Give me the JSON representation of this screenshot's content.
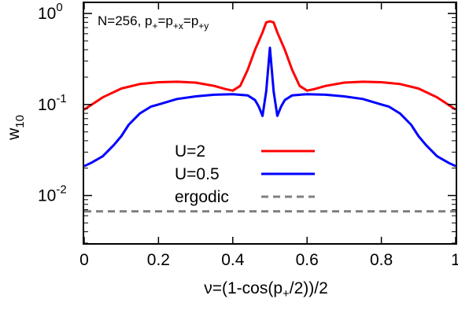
{
  "chart_data": {
    "type": "line",
    "annotation": "N=256, p+=p+x=p+y",
    "xlabel": "ν=(1-cos(p+/2))/2",
    "ylabel": "w10",
    "xlim": [
      0,
      1
    ],
    "ylim": [
      0.003,
      1.3
    ],
    "yscale": "log",
    "grid": false,
    "legend_position": "center",
    "x_ticks": [
      {
        "value": 0,
        "label": "0"
      },
      {
        "value": 0.2,
        "label": "0.2"
      },
      {
        "value": 0.4,
        "label": "0.4"
      },
      {
        "value": 0.6,
        "label": "0.6"
      },
      {
        "value": 0.8,
        "label": "0.8"
      },
      {
        "value": 1,
        "label": "1"
      }
    ],
    "y_ticks": [
      {
        "value": 0.01,
        "base": "10",
        "exp": "-2"
      },
      {
        "value": 0.1,
        "base": "10",
        "exp": "-1"
      },
      {
        "value": 1,
        "base": "10",
        "exp": "0"
      }
    ],
    "series": [
      {
        "name": "U=2",
        "color": "#ff0000",
        "style": "solid",
        "x": [
          0,
          0.05,
          0.1,
          0.15,
          0.2,
          0.25,
          0.3,
          0.35,
          0.38,
          0.4,
          0.42,
          0.44,
          0.46,
          0.48,
          0.49,
          0.5,
          0.51,
          0.52,
          0.54,
          0.56,
          0.58,
          0.6,
          0.62,
          0.65,
          0.7,
          0.75,
          0.8,
          0.85,
          0.9,
          0.95,
          1
        ],
        "y": [
          0.088,
          0.12,
          0.15,
          0.168,
          0.176,
          0.178,
          0.174,
          0.16,
          0.148,
          0.142,
          0.16,
          0.24,
          0.4,
          0.62,
          0.8,
          0.82,
          0.8,
          0.62,
          0.4,
          0.24,
          0.16,
          0.142,
          0.148,
          0.16,
          0.174,
          0.178,
          0.176,
          0.168,
          0.15,
          0.12,
          0.088
        ]
      },
      {
        "name": "U=0.5",
        "color": "#0000ff",
        "style": "solid",
        "x": [
          0,
          0.02,
          0.05,
          0.08,
          0.1,
          0.12,
          0.15,
          0.18,
          0.2,
          0.25,
          0.3,
          0.35,
          0.4,
          0.44,
          0.46,
          0.47,
          0.48,
          0.49,
          0.5,
          0.51,
          0.52,
          0.53,
          0.54,
          0.56,
          0.6,
          0.65,
          0.7,
          0.75,
          0.8,
          0.82,
          0.85,
          0.88,
          0.9,
          0.92,
          0.95,
          0.98,
          1
        ],
        "y": [
          0.021,
          0.023,
          0.027,
          0.036,
          0.045,
          0.06,
          0.08,
          0.095,
          0.1,
          0.115,
          0.123,
          0.128,
          0.13,
          0.126,
          0.112,
          0.095,
          0.075,
          0.14,
          0.42,
          0.14,
          0.075,
          0.095,
          0.112,
          0.126,
          0.13,
          0.128,
          0.123,
          0.115,
          0.1,
          0.095,
          0.08,
          0.06,
          0.045,
          0.036,
          0.027,
          0.023,
          0.021
        ]
      },
      {
        "name": "ergodic",
        "color": "#808080",
        "style": "dashed",
        "x": [
          0,
          1
        ],
        "y": [
          0.0067,
          0.0067
        ]
      }
    ]
  }
}
